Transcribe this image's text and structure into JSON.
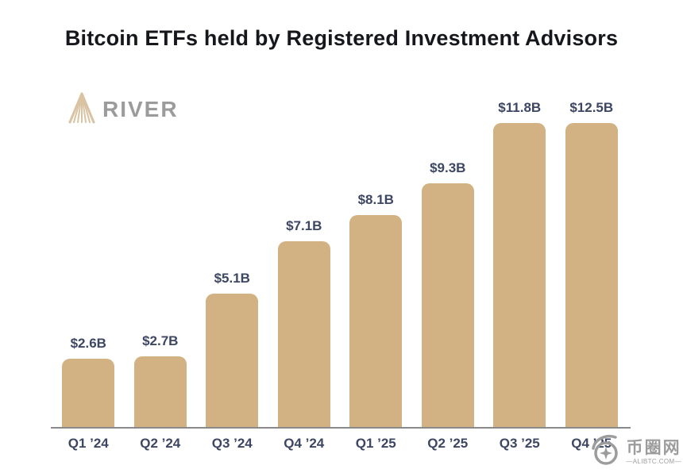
{
  "title": "Bitcoin ETFs held by Registered Investment Advisors",
  "logo": {
    "brand": "RIVER",
    "icon": "river-mountain-rays-icon",
    "icon_color": "#d9c3a3",
    "text_color": "#9b9b9b"
  },
  "chart_data": {
    "type": "bar",
    "title": "Bitcoin ETFs held by Registered Investment Advisors",
    "categories": [
      "Q1 ’24",
      "Q2 ’24",
      "Q3 ’24",
      "Q4 ’24",
      "Q1 ’25",
      "Q2 ’25",
      "Q3 ’25",
      "Q4 ’25"
    ],
    "values": [
      2.6,
      2.7,
      5.1,
      7.1,
      8.1,
      9.3,
      11.8,
      12.5
    ],
    "value_labels": [
      "$2.6B",
      "$2.7B",
      "$5.1B",
      "$7.1B",
      "$8.1B",
      "$9.3B",
      "$11.8B",
      "$12.5B"
    ],
    "unit": "USD billions",
    "xlabel": "",
    "ylabel": "",
    "ylim": [
      0,
      12.5
    ],
    "grid": false,
    "legend": false,
    "bar_color": "#d2b183",
    "label_color": "#3d4663",
    "axis_color": "#8a8a8a"
  },
  "watermark": {
    "site_name": "币圈网",
    "domain": "—ALIBTC.COM—",
    "color": "#9c9c9c"
  }
}
